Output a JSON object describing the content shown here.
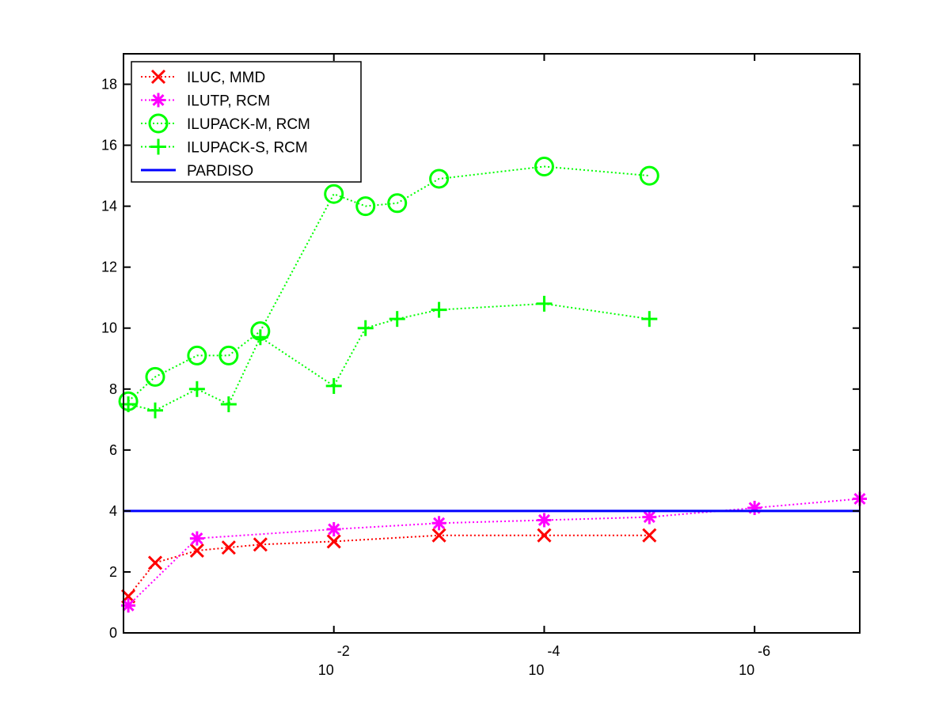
{
  "chart_data": {
    "type": "line",
    "title": "",
    "xlabel": "",
    "ylabel": "",
    "x_scale": "log-reversed",
    "xlim": [
      1,
      1e-07
    ],
    "ylim": [
      0,
      19
    ],
    "x_ticks": [
      {
        "value": 0.01,
        "base": "10",
        "exp": "-2"
      },
      {
        "value": 0.0001,
        "base": "10",
        "exp": "-4"
      },
      {
        "value": 1e-06,
        "base": "10",
        "exp": "-6"
      }
    ],
    "y_ticks": [
      0,
      2,
      4,
      6,
      8,
      10,
      12,
      14,
      16,
      18
    ],
    "grid": false,
    "legend_position": "top-left",
    "series": [
      {
        "name": "ILUC, MMD",
        "color": "#ff0000",
        "marker": "x",
        "line": "dotted",
        "points": [
          [
            0.9,
            1.2
          ],
          [
            0.5,
            2.3
          ],
          [
            0.2,
            2.7
          ],
          [
            0.1,
            2.8
          ],
          [
            0.05,
            2.9
          ],
          [
            0.01,
            3.0
          ],
          [
            0.001,
            3.2
          ],
          [
            0.0001,
            3.2
          ],
          [
            1e-05,
            3.2
          ]
        ]
      },
      {
        "name": "ILUTP, RCM",
        "color": "#ff00ff",
        "marker": "asterisk",
        "line": "dotted",
        "points": [
          [
            0.9,
            0.9
          ],
          [
            0.2,
            3.1
          ],
          [
            0.01,
            3.4
          ],
          [
            0.001,
            3.6
          ],
          [
            0.0001,
            3.7
          ],
          [
            1e-05,
            3.8
          ],
          [
            1e-06,
            4.1
          ],
          [
            1e-07,
            4.4
          ]
        ]
      },
      {
        "name": "ILUPACK-M, RCM",
        "color": "#00ff00",
        "marker": "circle",
        "line": "dotted",
        "points": [
          [
            0.9,
            7.6
          ],
          [
            0.5,
            8.4
          ],
          [
            0.2,
            9.1
          ],
          [
            0.1,
            9.1
          ],
          [
            0.05,
            9.9
          ],
          [
            0.01,
            14.4
          ],
          [
            0.005,
            14.0
          ],
          [
            0.0025,
            14.1
          ],
          [
            0.001,
            14.9
          ],
          [
            0.0001,
            15.3
          ],
          [
            1e-05,
            15.0
          ]
        ]
      },
      {
        "name": "ILUPACK-S, RCM",
        "color": "#00ff00",
        "marker": "plus",
        "line": "dotted",
        "points": [
          [
            0.9,
            7.5
          ],
          [
            0.5,
            7.3
          ],
          [
            0.2,
            8.0
          ],
          [
            0.1,
            7.5
          ],
          [
            0.05,
            9.7
          ],
          [
            0.01,
            8.1
          ],
          [
            0.005,
            10.0
          ],
          [
            0.0025,
            10.3
          ],
          [
            0.001,
            10.6
          ],
          [
            0.0001,
            10.8
          ],
          [
            1e-05,
            10.3
          ]
        ]
      },
      {
        "name": "PARDISO",
        "color": "#0000ff",
        "marker": "none",
        "line": "solid",
        "points": [
          [
            1,
            4
          ],
          [
            1e-07,
            4
          ]
        ]
      }
    ]
  }
}
